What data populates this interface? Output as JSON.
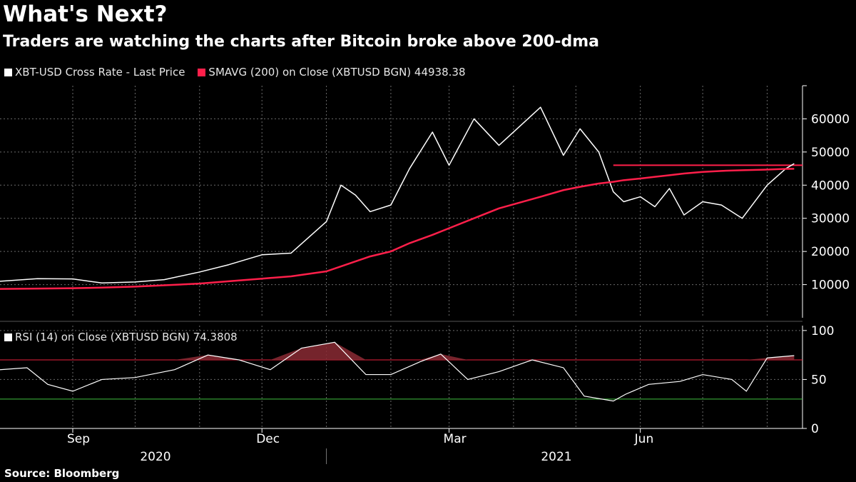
{
  "header": {
    "title": "What's Next?",
    "subtitle": "Traders are watching the charts after Bitcoin broke above 200-dma"
  },
  "legend": {
    "price_label": "XBT-USD Cross Rate - Last Price",
    "sma_label": "SMAVG (200)  on Close (XBTUSD BGN) 44938.38",
    "rsi_label": "RSI (14)  on Close (XBTUSD BGN) 74.3808"
  },
  "footer": {
    "source": "Source: Bloomberg"
  },
  "colors": {
    "background": "#000000",
    "price": "#ffffff",
    "sma": "#ff1f4a",
    "rsi_overbought_line": "#e8203c",
    "rsi_oversold_line": "#3fbf3f",
    "grid": "#6a6a6a"
  },
  "chart_data": [
    {
      "type": "line",
      "panel": "price",
      "title": "What's Next?",
      "subtitle": "Traders are watching the charts after Bitcoin broke above 200-dma",
      "x": [
        "2020-07-28",
        "2020-08-15",
        "2020-09-01",
        "2020-09-15",
        "2020-10-01",
        "2020-10-15",
        "2020-11-01",
        "2020-11-15",
        "2020-12-01",
        "2020-12-15",
        "2021-01-01",
        "2021-01-08",
        "2021-01-15",
        "2021-01-22",
        "2021-02-01",
        "2021-02-10",
        "2021-02-21",
        "2021-03-01",
        "2021-03-13",
        "2021-03-25",
        "2021-04-14",
        "2021-04-25",
        "2021-05-03",
        "2021-05-12",
        "2021-05-19",
        "2021-05-24",
        "2021-06-01",
        "2021-06-08",
        "2021-06-15",
        "2021-06-22",
        "2021-07-01",
        "2021-07-10",
        "2021-07-20",
        "2021-08-01",
        "2021-08-10",
        "2021-08-14"
      ],
      "series": [
        {
          "name": "XBT-USD Cross Rate - Last Price",
          "values": [
            11000,
            11800,
            11700,
            10500,
            10800,
            11500,
            13800,
            16000,
            19000,
            19500,
            29000,
            40000,
            37000,
            32000,
            34000,
            45000,
            56000,
            46000,
            60000,
            52000,
            63500,
            49000,
            57000,
            50000,
            38000,
            35000,
            36500,
            33500,
            39000,
            31000,
            35000,
            34000,
            30000,
            40000,
            45000,
            46500
          ]
        },
        {
          "name": "SMAVG (200)  on Close (XBTUSD BGN)",
          "values": [
            8700,
            8800,
            8900,
            9100,
            9400,
            9800,
            10300,
            11000,
            11800,
            12500,
            14000,
            15500,
            17000,
            18500,
            20000,
            22500,
            25000,
            27000,
            30000,
            33000,
            36500,
            38500,
            39500,
            40500,
            41000,
            41500,
            42000,
            42500,
            43000,
            43500,
            44000,
            44300,
            44500,
            44700,
            44900,
            44938.38
          ]
        }
      ],
      "annotation_level": 46000,
      "ylim": [
        0,
        70000
      ],
      "yticks": [
        10000,
        20000,
        30000,
        40000,
        50000,
        60000
      ],
      "grid": true,
      "legend": "top-left"
    },
    {
      "type": "line",
      "panel": "rsi",
      "x": [
        "2020-07-28",
        "2020-08-10",
        "2020-08-20",
        "2020-09-01",
        "2020-09-15",
        "2020-10-01",
        "2020-10-20",
        "2020-11-05",
        "2020-11-20",
        "2020-12-05",
        "2020-12-20",
        "2021-01-05",
        "2021-01-20",
        "2021-02-01",
        "2021-02-15",
        "2021-02-25",
        "2021-03-10",
        "2021-03-25",
        "2021-04-10",
        "2021-04-25",
        "2021-05-05",
        "2021-05-19",
        "2021-05-25",
        "2021-06-05",
        "2021-06-20",
        "2021-07-01",
        "2021-07-15",
        "2021-07-22",
        "2021-08-01",
        "2021-08-14"
      ],
      "series": [
        {
          "name": "RSI (14)  on Close (XBTUSD BGN)",
          "values": [
            60,
            62,
            45,
            38,
            50,
            52,
            60,
            75,
            70,
            60,
            82,
            88,
            55,
            55,
            68,
            76,
            50,
            58,
            70,
            62,
            33,
            28,
            35,
            45,
            48,
            55,
            50,
            38,
            72,
            74.3808
          ]
        }
      ],
      "overbought": 70,
      "oversold": 30,
      "ylim": [
        0,
        105
      ],
      "yticks": [
        0,
        50,
        100
      ],
      "grid": true
    }
  ],
  "x_axis": {
    "months": [
      "Sep",
      "Dec",
      "Mar",
      "Jun"
    ],
    "years": [
      "2020",
      "2021"
    ]
  }
}
